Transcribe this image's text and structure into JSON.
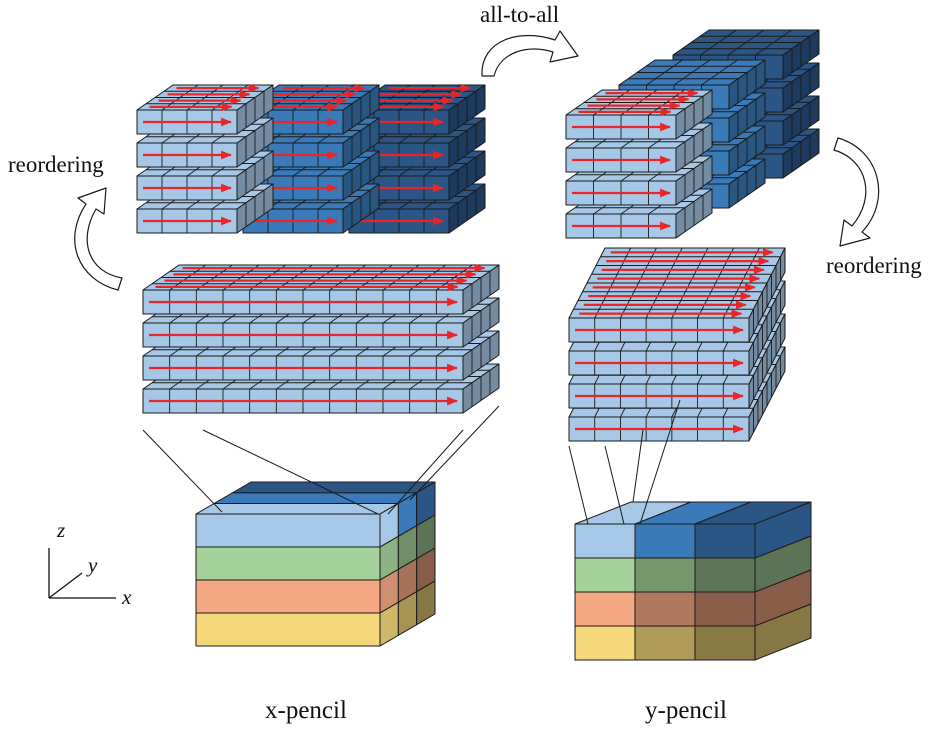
{
  "labels": {
    "all_to_all": "all-to-all",
    "reordering_left": "reordering",
    "reordering_right": "reordering",
    "x_pencil": "x-pencil",
    "y_pencil": "y-pencil"
  },
  "axes": {
    "z": "z",
    "y": "y",
    "x": "x"
  },
  "colors": {
    "block_light": "#a6c8e6",
    "block_mid": "#3a7ab8",
    "block_dark": "#2a5585",
    "arrow": "#e8262a",
    "green": "#a5d29a",
    "orange": "#f5a884",
    "yellow": "#f5d87c"
  }
}
